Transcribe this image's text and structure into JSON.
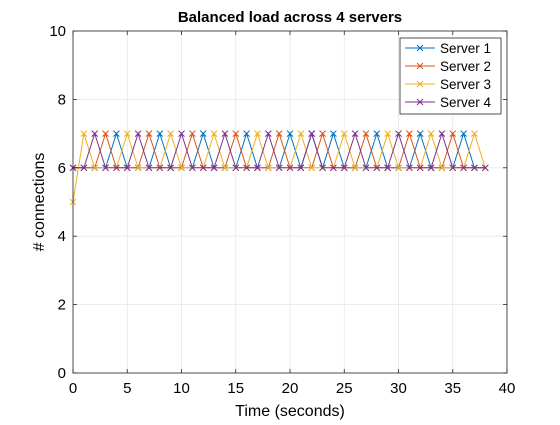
{
  "chart_data": {
    "type": "line",
    "title": "Balanced load across 4 servers",
    "xlabel": "Time (seconds)",
    "ylabel": "# connections",
    "xlim": [
      0,
      40
    ],
    "ylim": [
      0,
      10
    ],
    "xticks": [
      "0",
      "5",
      "10",
      "15",
      "20",
      "25",
      "30",
      "35",
      "40"
    ],
    "yticks": [
      "0",
      "2",
      "4",
      "6",
      "8",
      "10"
    ],
    "grid": true,
    "legend_position": "top-right",
    "marker": "x",
    "x": [
      0,
      1,
      2,
      3,
      4,
      5,
      6,
      7,
      8,
      9,
      10,
      11,
      12,
      13,
      14,
      15,
      16,
      17,
      18,
      19,
      20,
      21,
      22,
      23,
      24,
      25,
      26,
      27,
      28,
      29,
      30,
      31,
      32,
      33,
      34,
      35,
      36,
      37,
      38
    ],
    "series": [
      {
        "name": "Server 1",
        "color": "#0072BD",
        "values": [
          6,
          6,
          6,
          6,
          7,
          6,
          6,
          6,
          7,
          6,
          6,
          6,
          7,
          6,
          6,
          6,
          7,
          6,
          6,
          6,
          7,
          6,
          7,
          6,
          7,
          6,
          6,
          6,
          7,
          6,
          6,
          6,
          7,
          6,
          6,
          6,
          7,
          6,
          6
        ]
      },
      {
        "name": "Server 2",
        "color": "#D95319",
        "values": [
          6,
          6,
          6,
          7,
          6,
          6,
          6,
          7,
          6,
          6,
          6,
          7,
          6,
          6,
          6,
          7,
          6,
          6,
          6,
          7,
          6,
          6,
          6,
          7,
          6,
          6,
          6,
          7,
          6,
          6,
          6,
          7,
          6,
          6,
          6,
          7,
          6,
          6,
          6
        ]
      },
      {
        "name": "Server 3",
        "color": "#EDB120",
        "values": [
          5,
          7,
          6,
          6,
          6,
          7,
          6,
          6,
          6,
          7,
          6,
          6,
          6,
          7,
          6,
          6,
          6,
          7,
          6,
          6,
          6,
          7,
          6,
          6,
          6,
          7,
          6,
          6,
          6,
          7,
          6,
          6,
          6,
          7,
          6,
          6,
          6,
          7,
          6
        ]
      },
      {
        "name": "Server 4",
        "color": "#7E2F8E",
        "values": [
          6,
          6,
          7,
          6,
          6,
          6,
          7,
          6,
          6,
          6,
          7,
          6,
          6,
          6,
          7,
          6,
          6,
          6,
          7,
          6,
          6,
          6,
          7,
          6,
          6,
          6,
          7,
          6,
          6,
          6,
          7,
          6,
          6,
          6,
          7,
          6,
          6,
          6,
          6
        ]
      }
    ]
  }
}
